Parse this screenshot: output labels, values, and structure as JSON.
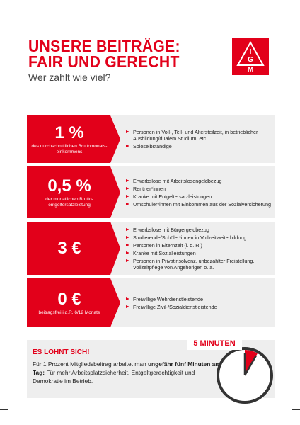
{
  "header": {
    "title_line1": "UNSERE BEITRÄGE:",
    "title_line2": "FAIR UND GERECHT",
    "subtitle": "Wer zahlt wie viel?",
    "logo": [
      "I",
      "G",
      "M"
    ]
  },
  "rows": [
    {
      "amount": "1 %",
      "note": "des durchschnittlichen Bruttomonats-einkommens",
      "items": [
        "Personen in Voll-, Teil- und Altersteilzeit, in betrieblicher Ausbildung/dualem Studium, etc.",
        "Soloselbständige"
      ]
    },
    {
      "amount": "0,5 %",
      "note": "der monatlichen Brutto-entgeltersatzleistung",
      "items": [
        "Erwerbslose mit Arbeitslosengeldbezug",
        "Rentner*innen",
        "Kranke mit Entgeltersatzleistungen",
        "Umschüler*innen mit Einkommen aus der Sozialversicherung"
      ]
    },
    {
      "amount": "3 €",
      "items": [
        "Erwerbslose mit Bürgergeldbezug",
        "Studierende/Schüler*innen in Vollzeitweiterbildung",
        "Personen in Elternzeit (i. d. R.)",
        "Kranke mit Sozialleistungen",
        "Personen in Privatinsolvenz, unbezahlter Freistellung, Vollzeitpflege von Angehörigen o. ä."
      ]
    },
    {
      "amount": "0 €",
      "note": "beitragsfrei i.d.R. 6/12 Monate",
      "items": [
        "Freiwillige Wehrdienstleistende",
        "Freiwillige Zivil-/Sozialdienstleistende"
      ]
    }
  ],
  "footer": {
    "heading": "ES LOHNT SICH!",
    "text_1": "Für 1 Prozent Mitgliedsbeitrag arbeitet man ",
    "text_bold": "ungefähr fünf Minuten am Tag:",
    "text_2": " Für mehr Arbeitsplatzsicherheit, Entgeltgerechtigkeit und Demokratie im Betrieb.",
    "clock_label": "5 MINUTEN"
  }
}
